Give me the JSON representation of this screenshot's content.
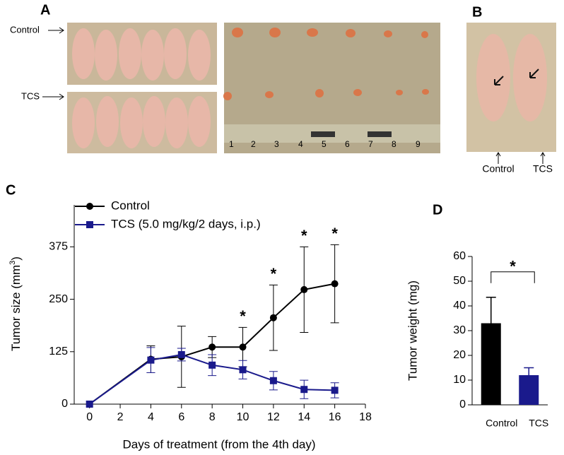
{
  "panels": {
    "A": {
      "letter": "A",
      "labels": [
        "Control",
        "TCS"
      ]
    },
    "B": {
      "letter": "B",
      "labels": [
        "Control",
        "TCS"
      ]
    }
  },
  "chart_data": [
    {
      "type": "line",
      "panel": "C",
      "x_label": "Days of treatment (from the 4th day)",
      "y_label": {
        "text": "Tumor size (mm",
        "sup": "3",
        "end": ")"
      },
      "x": [
        0,
        4,
        6,
        8,
        10,
        12,
        14,
        16
      ],
      "series": [
        {
          "name": "Control",
          "color": "#000000",
          "marker": "circle",
          "values": [
            0,
            107,
            113,
            136,
            136,
            206,
            273,
            287
          ],
          "errors": [
            0,
            32,
            73,
            25,
            47,
            78,
            102,
            93
          ]
        },
        {
          "name": "TCS (5.0 mg/kg/2 days, i.p.)",
          "color": "#1a1a8c",
          "marker": "square",
          "values": [
            0,
            105,
            118,
            93,
            82,
            56,
            35,
            33
          ],
          "errors": [
            0,
            30,
            15,
            25,
            22,
            22,
            22,
            18
          ]
        }
      ],
      "annotations": [
        {
          "text": "*",
          "x": 10
        },
        {
          "text": "*",
          "x": 12
        },
        {
          "text": "*",
          "x": 14
        },
        {
          "text": "*",
          "x": 16
        }
      ],
      "xlim": [
        -1,
        18
      ],
      "xticks": [
        0,
        2,
        4,
        6,
        8,
        10,
        12,
        14,
        16,
        18
      ],
      "ylim": [
        0,
        475
      ],
      "yticks": [
        0,
        125,
        250,
        375
      ],
      "legend": "top-left"
    },
    {
      "type": "bar",
      "panel": "D",
      "y_label": "Tumor weight (mg)",
      "categories": [
        "Control",
        "TCS"
      ],
      "values": [
        33,
        12
      ],
      "errors": [
        10.5,
        3
      ],
      "colors": [
        "#000000",
        "#1a1a8c"
      ],
      "significance": "*",
      "ylim": [
        0,
        60
      ],
      "yticks": [
        0,
        10,
        20,
        30,
        40,
        50,
        60
      ]
    }
  ]
}
